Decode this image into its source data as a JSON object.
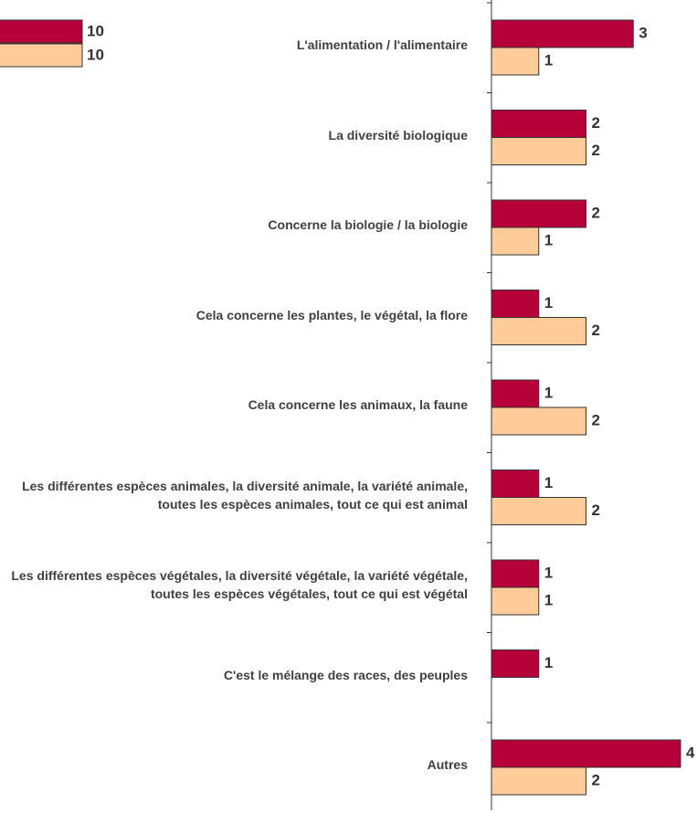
{
  "chart_data": [
    {
      "type": "bar",
      "orientation": "horizontal",
      "categories": [
        null
      ],
      "series": [
        {
          "color": "#b5003a",
          "values": [
            10
          ]
        },
        {
          "color": "#ffcc99",
          "values": [
            10
          ]
        }
      ],
      "xlim": [
        0,
        10
      ]
    },
    {
      "type": "bar",
      "orientation": "horizontal",
      "categories": [
        "L'alimentation / l'alimentaire",
        "La diversité biologique",
        "Concerne la biologie / la biologie",
        "Cela concerne les plantes, le végétal, la flore",
        "Cela concerne les animaux, la faune",
        "Les différentes espèces animales, la diversité animale, la variété animale, toutes les espèces animales, tout ce qui est animal",
        "Les différentes espèces végétales, la diversité végétale, la variété végétale, toutes les espèces végétales, tout ce qui est végétal",
        "C'est le mélange des races, des peuples",
        "Autres"
      ],
      "series": [
        {
          "color": "#b5003a",
          "values": [
            3,
            2,
            2,
            1,
            1,
            1,
            1,
            1,
            4
          ]
        },
        {
          "color": "#ffcc99",
          "values": [
            1,
            2,
            1,
            2,
            2,
            2,
            1,
            null,
            2
          ]
        }
      ],
      "xlim": [
        0,
        4
      ]
    }
  ]
}
